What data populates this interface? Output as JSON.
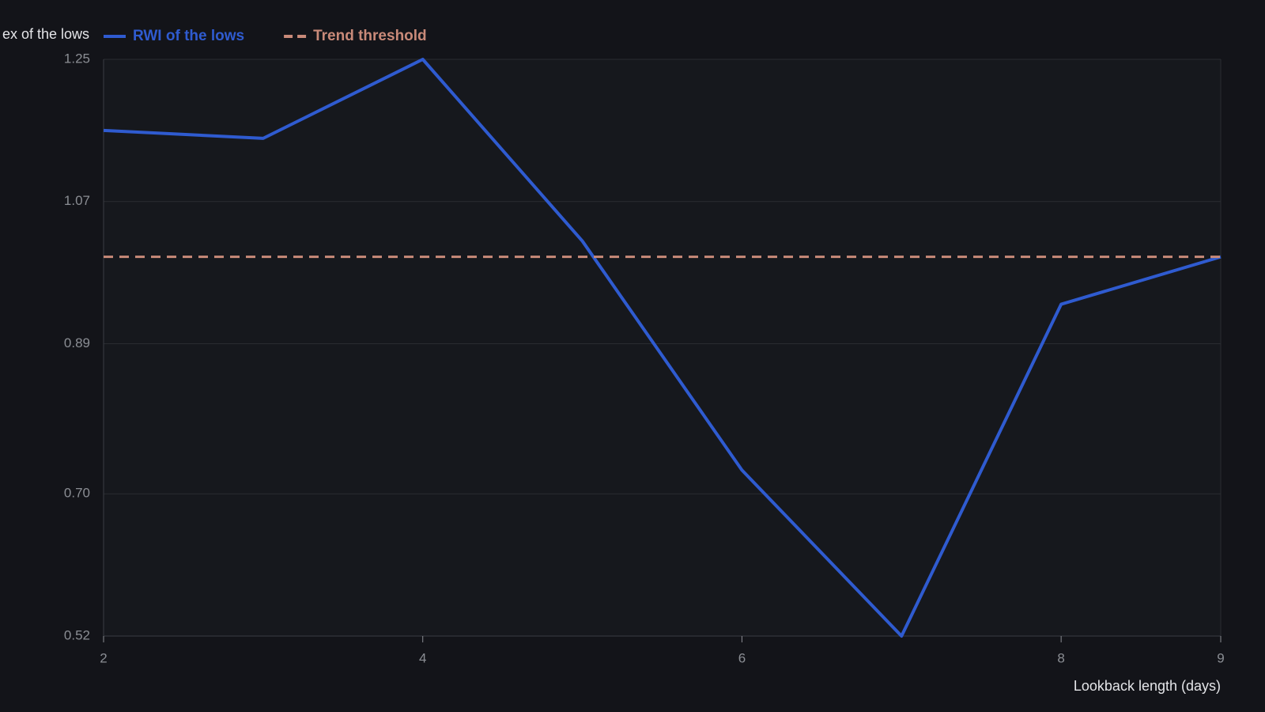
{
  "chart_data": {
    "type": "line",
    "y_label": "ex of the lows",
    "x_label": "Lookback length (days)",
    "x": [
      2,
      3,
      4,
      5,
      6,
      7,
      8,
      9
    ],
    "series": [
      {
        "name": "RWI of the lows",
        "color": "#2f5bd0",
        "dashed": false,
        "values": [
          1.16,
          1.15,
          1.25,
          1.02,
          0.73,
          0.52,
          0.94,
          1.0
        ]
      },
      {
        "name": "Trend threshold",
        "color": "#c98a79",
        "dashed": true,
        "values": [
          1.0,
          1.0,
          1.0,
          1.0,
          1.0,
          1.0,
          1.0,
          1.0
        ]
      }
    ],
    "xlim": [
      2,
      9
    ],
    "xticks": [
      2,
      4,
      6,
      8,
      9
    ],
    "ylim": [
      0.52,
      1.25
    ],
    "yticks": [
      0.52,
      {
        "value": 0.7,
        "label": "0.70"
      },
      0.89,
      1.07,
      1.25
    ],
    "grid": true,
    "legend": "top-left"
  }
}
